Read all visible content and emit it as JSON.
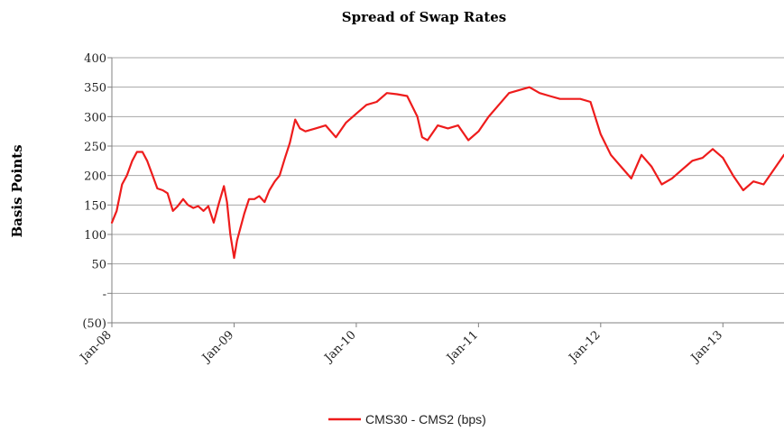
{
  "chart_data": {
    "type": "line",
    "title": "Spread of Swap Rates",
    "xlabel": "",
    "ylabel": "Basis Points",
    "ylim": [
      -50,
      400
    ],
    "xlim": [
      "2008-01",
      "2013-07"
    ],
    "y_ticks": [
      {
        "value": 400,
        "label": "400"
      },
      {
        "value": 350,
        "label": "350"
      },
      {
        "value": 300,
        "label": "300"
      },
      {
        "value": 250,
        "label": "250"
      },
      {
        "value": 200,
        "label": "200"
      },
      {
        "value": 150,
        "label": "150"
      },
      {
        "value": 100,
        "label": "100"
      },
      {
        "value": 50,
        "label": "50"
      },
      {
        "value": 0,
        "label": "-"
      },
      {
        "value": -50,
        "label": "(50)"
      }
    ],
    "x_ticks": [
      {
        "value": "2008-01",
        "label": "Jan-08"
      },
      {
        "value": "2009-01",
        "label": "Jan-09"
      },
      {
        "value": "2010-01",
        "label": "Jan-10"
      },
      {
        "value": "2011-01",
        "label": "Jan-11"
      },
      {
        "value": "2012-01",
        "label": "Jan-12"
      },
      {
        "value": "2013-01",
        "label": "Jan-13"
      }
    ],
    "grid": "horizontal",
    "legend_position": "bottom-center",
    "series": [
      {
        "name": "CMS30 - CMS2 (bps)",
        "color": "#ee1c1c",
        "points": [
          [
            "2008-01",
            120
          ],
          [
            "2008-01-15",
            140
          ],
          [
            "2008-02",
            185
          ],
          [
            "2008-02-15",
            200
          ],
          [
            "2008-03",
            225
          ],
          [
            "2008-03-15",
            240
          ],
          [
            "2008-04",
            240
          ],
          [
            "2008-04-15",
            225
          ],
          [
            "2008-05",
            200
          ],
          [
            "2008-05-15",
            178
          ],
          [
            "2008-06",
            175
          ],
          [
            "2008-06-15",
            170
          ],
          [
            "2008-07",
            140
          ],
          [
            "2008-07-15",
            148
          ],
          [
            "2008-08",
            160
          ],
          [
            "2008-08-15",
            150
          ],
          [
            "2008-09",
            145
          ],
          [
            "2008-09-15",
            148
          ],
          [
            "2008-10",
            140
          ],
          [
            "2008-10-15",
            148
          ],
          [
            "2008-11",
            120
          ],
          [
            "2008-11-15",
            150
          ],
          [
            "2008-12",
            182
          ],
          [
            "2008-12-10",
            155
          ],
          [
            "2008-12-20",
            100
          ],
          [
            "2009-01",
            60
          ],
          [
            "2009-01-10",
            90
          ],
          [
            "2009-02",
            135
          ],
          [
            "2009-02-15",
            160
          ],
          [
            "2009-03",
            160
          ],
          [
            "2009-03-15",
            165
          ],
          [
            "2009-04",
            155
          ],
          [
            "2009-04-15",
            175
          ],
          [
            "2009-05",
            190
          ],
          [
            "2009-05-15",
            200
          ],
          [
            "2009-06",
            230
          ],
          [
            "2009-06-15",
            255
          ],
          [
            "2009-07",
            295
          ],
          [
            "2009-07-15",
            280
          ],
          [
            "2009-08",
            275
          ],
          [
            "2009-09",
            280
          ],
          [
            "2009-10",
            285
          ],
          [
            "2009-11",
            265
          ],
          [
            "2009-12",
            290
          ],
          [
            "2010-01",
            305
          ],
          [
            "2010-02",
            320
          ],
          [
            "2010-03",
            325
          ],
          [
            "2010-04",
            340
          ],
          [
            "2010-05",
            338
          ],
          [
            "2010-06",
            335
          ],
          [
            "2010-07",
            300
          ],
          [
            "2010-07-15",
            265
          ],
          [
            "2010-08",
            260
          ],
          [
            "2010-09",
            285
          ],
          [
            "2010-10",
            280
          ],
          [
            "2010-11",
            285
          ],
          [
            "2010-12",
            260
          ],
          [
            "2011-01",
            275
          ],
          [
            "2011-02",
            300
          ],
          [
            "2011-03",
            320
          ],
          [
            "2011-04",
            340
          ],
          [
            "2011-05",
            345
          ],
          [
            "2011-06",
            350
          ],
          [
            "2011-07",
            340
          ],
          [
            "2011-08",
            335
          ],
          [
            "2011-09",
            330
          ],
          [
            "2011-10",
            330
          ],
          [
            "2011-11",
            330
          ],
          [
            "2011-12",
            325
          ],
          [
            "2012-01",
            270
          ],
          [
            "2012-02",
            235
          ],
          [
            "2012-03",
            215
          ],
          [
            "2012-04",
            195
          ],
          [
            "2012-05",
            235
          ],
          [
            "2012-06",
            215
          ],
          [
            "2012-07",
            185
          ],
          [
            "2012-08",
            195
          ],
          [
            "2012-09",
            210
          ],
          [
            "2012-10",
            225
          ],
          [
            "2012-11",
            230
          ],
          [
            "2012-12",
            245
          ],
          [
            "2013-01",
            230
          ],
          [
            "2013-02",
            200
          ],
          [
            "2013-03",
            175
          ],
          [
            "2013-04",
            190
          ],
          [
            "2013-05",
            185
          ],
          [
            "2013-06",
            210
          ],
          [
            "2013-07",
            235
          ]
        ]
      }
    ]
  }
}
